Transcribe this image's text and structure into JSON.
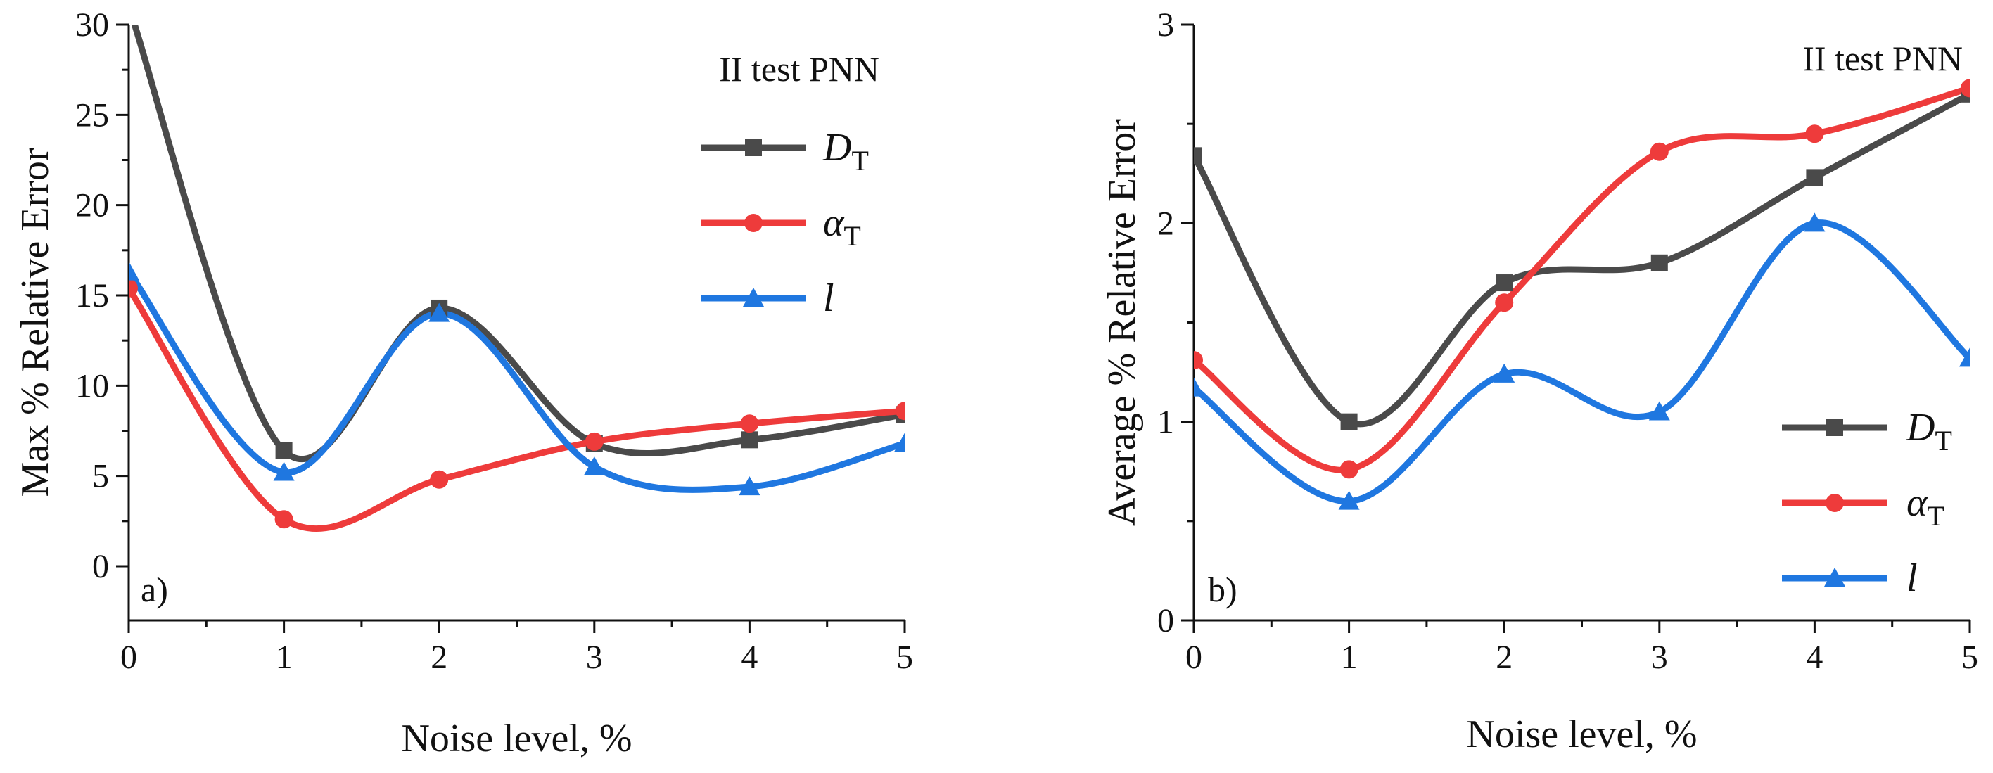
{
  "chart_data": [
    {
      "type": "line",
      "panel_label": "a)",
      "annotation": "II test PNN",
      "xlabel": "Noise level, %",
      "ylabel": "Max % Relative Error",
      "xlim": [
        0,
        5
      ],
      "ylim": [
        -3,
        30
      ],
      "xticks": [
        "0",
        "1",
        "2",
        "3",
        "4",
        "5"
      ],
      "yticks": [
        "0",
        "5",
        "10",
        "15",
        "20",
        "25",
        "30"
      ],
      "legend_position": "top-right",
      "grid": false,
      "x": [
        0,
        1,
        2,
        3,
        4,
        5
      ],
      "series": [
        {
          "name": "D",
          "subscript": "T",
          "color": "#4a4a4a",
          "marker": "square",
          "values": [
            31.0,
            6.4,
            14.3,
            6.8,
            7.0,
            8.4
          ]
        },
        {
          "name": "α",
          "subscript": "T",
          "color": "#ee3b3b",
          "marker": "circle",
          "values": [
            15.4,
            2.6,
            4.8,
            6.9,
            7.9,
            8.6
          ]
        },
        {
          "name": "l",
          "subscript": "",
          "color": "#1f77e0",
          "marker": "triangle",
          "values": [
            16.3,
            5.2,
            14.0,
            5.5,
            4.4,
            6.8
          ]
        }
      ]
    },
    {
      "type": "line",
      "panel_label": "b)",
      "annotation": "II test PNN",
      "xlabel": "Noise level, %",
      "ylabel": "Average % Relative Error",
      "xlim": [
        0,
        5
      ],
      "ylim": [
        0,
        3
      ],
      "xticks": [
        "0",
        "1",
        "2",
        "3",
        "4",
        "5"
      ],
      "yticks": [
        "0",
        "1",
        "2",
        "3"
      ],
      "legend_position": "bottom-right",
      "grid": false,
      "x": [
        0,
        1,
        2,
        3,
        4,
        5
      ],
      "series": [
        {
          "name": "D",
          "subscript": "T",
          "color": "#4a4a4a",
          "marker": "square",
          "values": [
            2.34,
            1.0,
            1.7,
            1.8,
            2.23,
            2.65
          ]
        },
        {
          "name": "α",
          "subscript": "T",
          "color": "#ee3b3b",
          "marker": "circle",
          "values": [
            1.31,
            0.76,
            1.6,
            2.36,
            2.45,
            2.68
          ]
        },
        {
          "name": "l",
          "subscript": "",
          "color": "#1f77e0",
          "marker": "triangle",
          "values": [
            1.17,
            0.6,
            1.24,
            1.05,
            2.0,
            1.32
          ]
        }
      ]
    }
  ]
}
